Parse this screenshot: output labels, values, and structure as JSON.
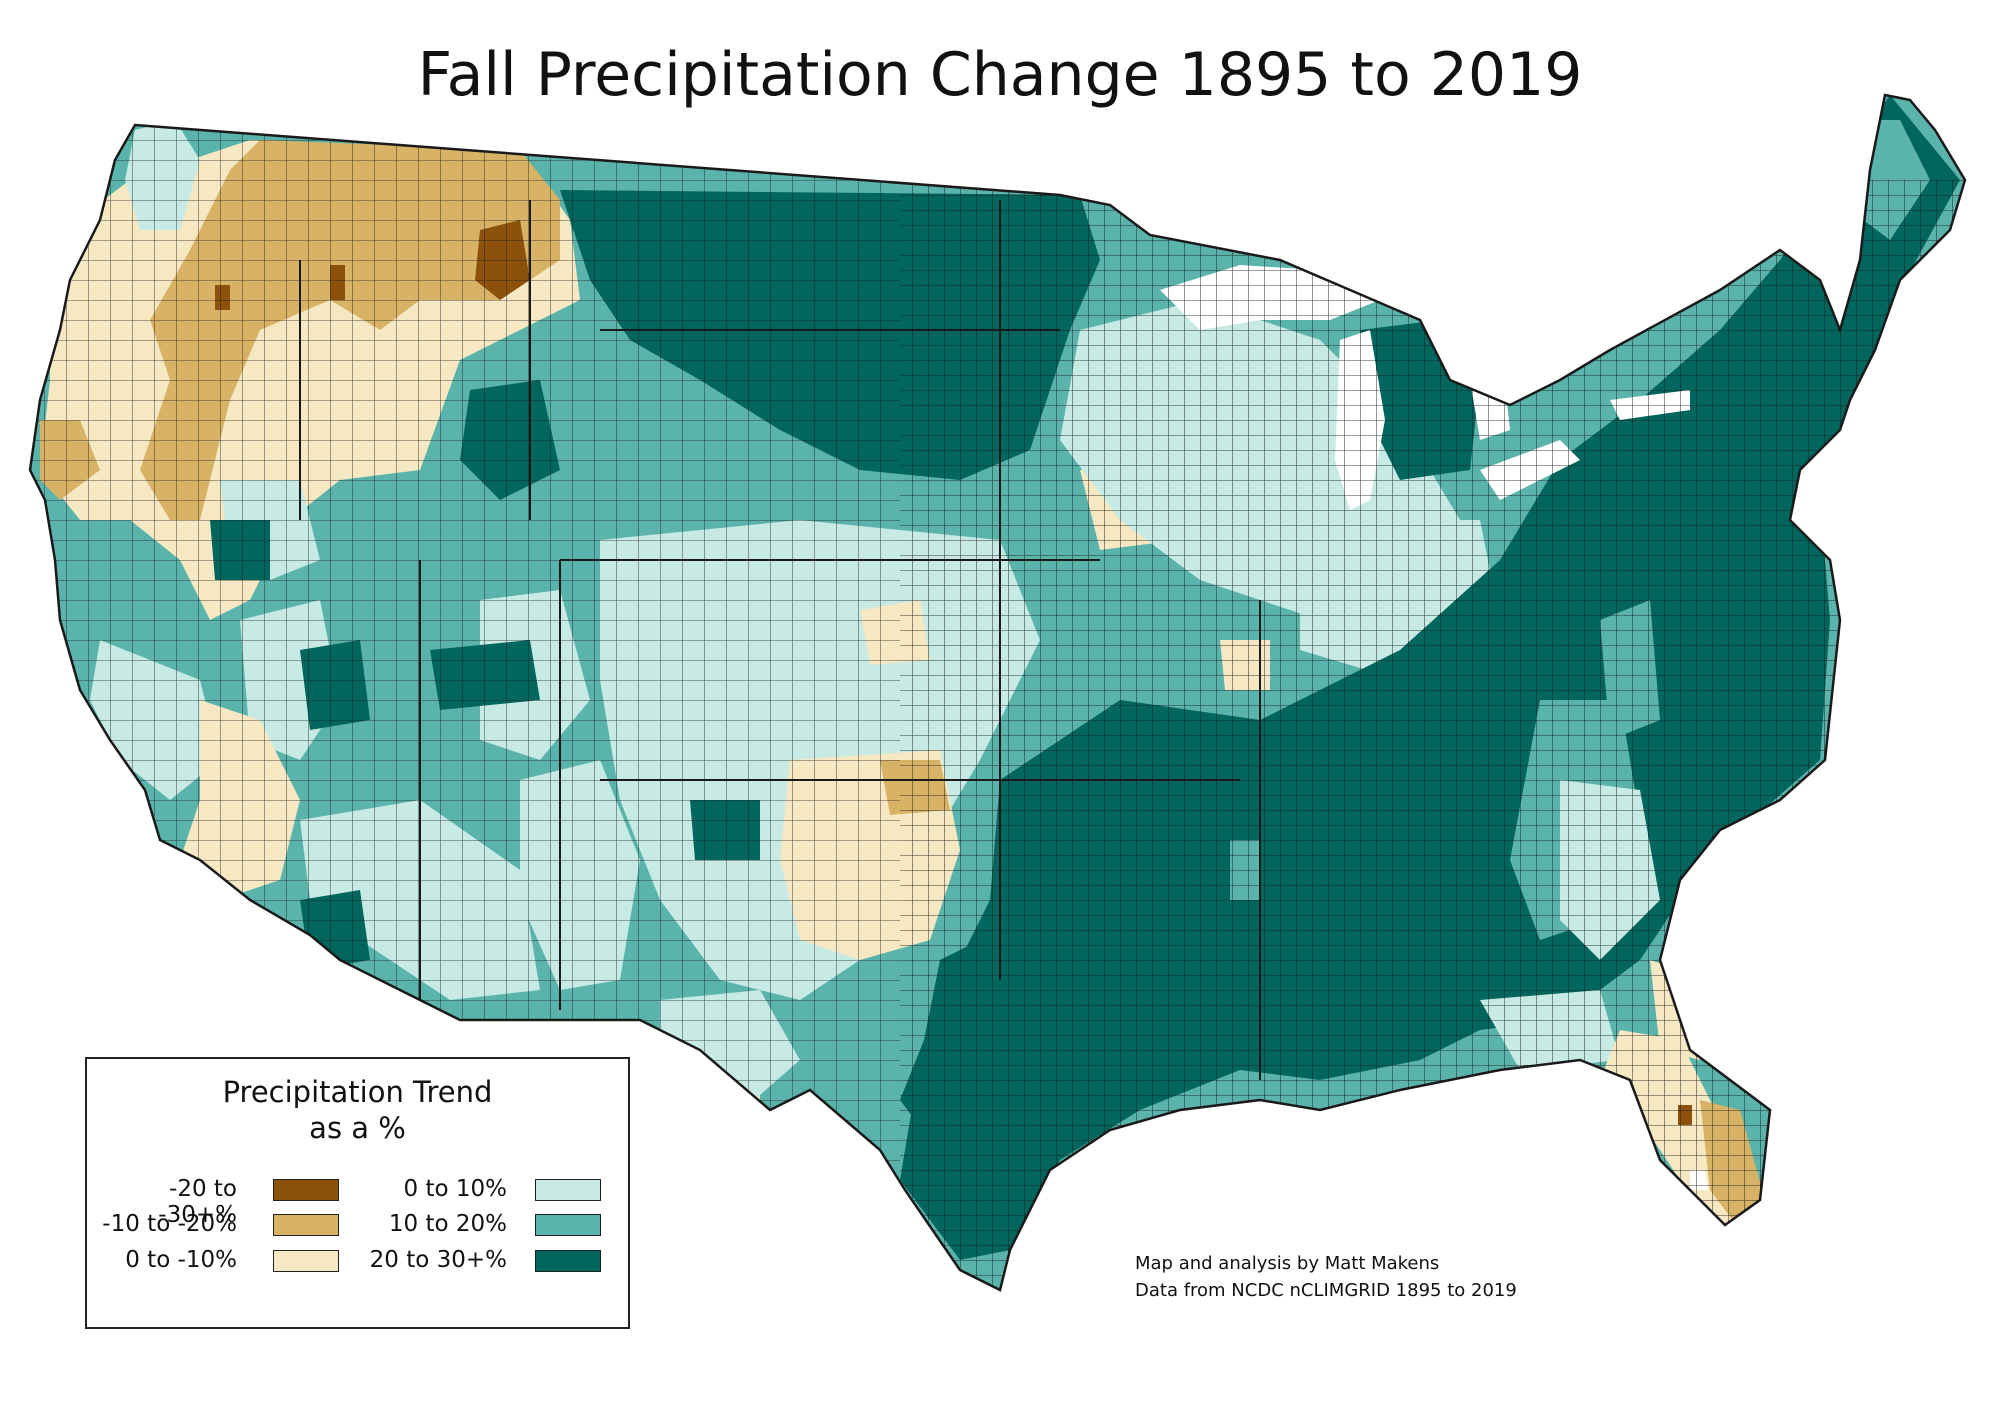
{
  "title": "Fall Precipitation Change 1895 to 2019",
  "legend": {
    "title_line1": "Precipitation Trend",
    "title_line2": "as a %",
    "items": [
      {
        "label": "-20 to -30+%",
        "color": "#8c510a"
      },
      {
        "label": "-10 to -20%",
        "color": "#d8b365"
      },
      {
        "label": "0 to -10%",
        "color": "#f6e8c3"
      },
      {
        "label": "0 to 10%",
        "color": "#c7eae5"
      },
      {
        "label": "10 to 20%",
        "color": "#5ab4ac"
      },
      {
        "label": "20 to 30+%",
        "color": "#01665e"
      }
    ]
  },
  "credits": {
    "line1": "Map and analysis by Matt Makens",
    "line2": "Data from NCDC nCLIMGRID 1895 to 2019"
  },
  "colors": {
    "outline": "#1a1a1a",
    "background": "#ffffff"
  }
}
